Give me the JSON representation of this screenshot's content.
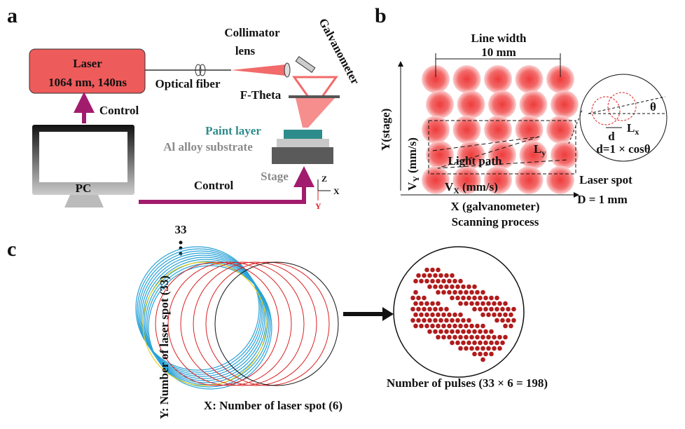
{
  "panel_a": {
    "label": "a",
    "laser": {
      "title": "Laser",
      "spec": "1064 nm, 140ns"
    },
    "optical_fiber": "Optical fiber",
    "collimator": {
      "line1": "Collimator",
      "line2": "lens"
    },
    "galvanometer": "Galvanometer",
    "f_theta": "F-Theta",
    "control_up": "Control",
    "paint_layer": "Paint layer",
    "substrate": "Al alloy substrate",
    "stage": "Stage",
    "pc": "PC",
    "control_bottom": "Control",
    "axes": {
      "z": "Z",
      "x": "X",
      "y": "Y"
    }
  },
  "panel_b": {
    "label": "b",
    "line_width": "Line width",
    "line_width_value": "10 mm",
    "y_axis": "Y(stage)",
    "vy": {
      "main": "V",
      "sub": "Y",
      "unit": "(mm/s)"
    },
    "light_path": "Light path",
    "ly": {
      "main": "L",
      "sub": "y"
    },
    "lx": {
      "main": "L",
      "sub": "x"
    },
    "theta": "θ",
    "d": "d",
    "formula": "d=1 × cosθ",
    "laser_spot": "Laser spot",
    "spot_size": "D = 1 mm",
    "vx": {
      "main": "V",
      "sub": "X",
      "unit": "(mm/s)"
    },
    "x_axis": "X (galvanometer)",
    "caption": "Scanning process"
  },
  "panel_c": {
    "label": "c",
    "count": "33",
    "y_label": "Y: Number of laser spot (33)",
    "x_label": "X: Number of laser spot (6)",
    "result": "Number of pulses (33 × 6 = 198)"
  }
}
